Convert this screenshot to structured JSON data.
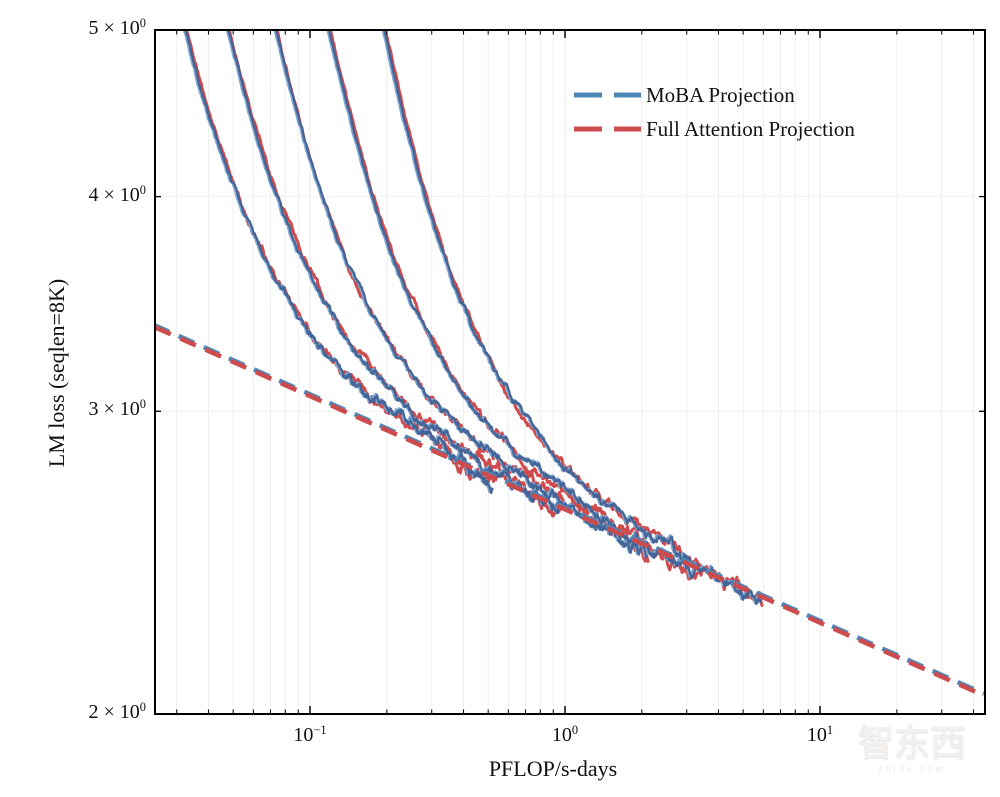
{
  "colors": {
    "moba_blue": "#4e86b8",
    "full_attention_red": "#cc4b4d",
    "curve_light_blue": "#7ea6cf",
    "curve_overlap_navy": "#3f5f92",
    "curve_red": "#cf4b4d",
    "grid_minor": "#efefef",
    "grid_major": "#e8e8e8",
    "grid_horizontal": "#f2f2f2",
    "frame": "#000000"
  },
  "axes": {
    "x": {
      "title": "PFLOP/s-days",
      "ticks": [
        {
          "base": "10",
          "exp": "−1",
          "value": 0.1
        },
        {
          "base": "10",
          "exp": "0",
          "value": 1
        },
        {
          "base": "10",
          "exp": "1",
          "value": 10
        }
      ]
    },
    "y": {
      "title": "LM loss (seqlen=8K)",
      "ticks": [
        {
          "mantissa": "5 × 10",
          "exp": "0",
          "value": 5
        },
        {
          "mantissa": "4 × 10",
          "exp": "0",
          "value": 4
        },
        {
          "mantissa": "3 × 10",
          "exp": "0",
          "value": 3
        },
        {
          "mantissa": "2 × 10",
          "exp": "0",
          "value": 2
        }
      ]
    }
  },
  "legend": {
    "items": [
      {
        "label": "MoBA Projection",
        "color": "#4e86b8",
        "style": "dashed"
      },
      {
        "label": "Full Attention Projection",
        "color": "#cc4b4d",
        "style": "dashed"
      }
    ]
  },
  "watermark": {
    "main": "智东西",
    "sub": "zhidx.com"
  },
  "chart_data": {
    "type": "line",
    "title": "",
    "xlabel": "PFLOP/s-days",
    "ylabel": "LM loss (seqlen=8K)",
    "x_scale": "log",
    "y_scale": "log",
    "xlim": [
      0.0246,
      44.4
    ],
    "ylim": [
      2.0,
      5.0
    ],
    "x_tick_values": [
      0.1,
      1,
      10
    ],
    "y_tick_values": [
      2,
      3,
      4,
      5
    ],
    "grid": "vertical-minor-log, faint horizontal at 3 and 4",
    "legend_position": "upper right inside, no frame",
    "projections": {
      "description": "MoBA and Full Attention scaling-law fits are visually identical dashed power laws",
      "points": [
        [
          0.0246,
          3.36
        ],
        [
          44.4,
          2.05
        ]
      ],
      "power_law_exponent": -0.066,
      "series": [
        {
          "name": "MoBA Projection",
          "color": "#4e86b8"
        },
        {
          "name": "Full Attention Projection",
          "color": "#cc4b4d"
        }
      ]
    },
    "training_runs": {
      "description": "5 model sizes, each trained with MoBA (blue) and Full Attention (red); curves overlap almost exactly and merge onto the projection line",
      "excess_exponent": 1.6,
      "runs": [
        {
          "enter_top": [
            0.0325,
            5.0
          ],
          "end": [
            0.52,
            2.75
          ],
          "end_dip": 0.05
        },
        {
          "enter_top": [
            0.0478,
            5.0
          ],
          "end": [
            0.95,
            2.64
          ],
          "end_dip": 0.045
        },
        {
          "enter_top": [
            0.0735,
            5.0
          ],
          "end": [
            2.1,
            2.51
          ],
          "end_dip": 0.04
        },
        {
          "enter_top": [
            0.119,
            5.0
          ],
          "end": [
            3.4,
            2.43
          ],
          "end_dip": 0.03
        },
        {
          "enter_top": [
            0.196,
            5.0
          ],
          "end": [
            5.9,
            2.34
          ],
          "end_dip": 0.025
        }
      ]
    }
  }
}
